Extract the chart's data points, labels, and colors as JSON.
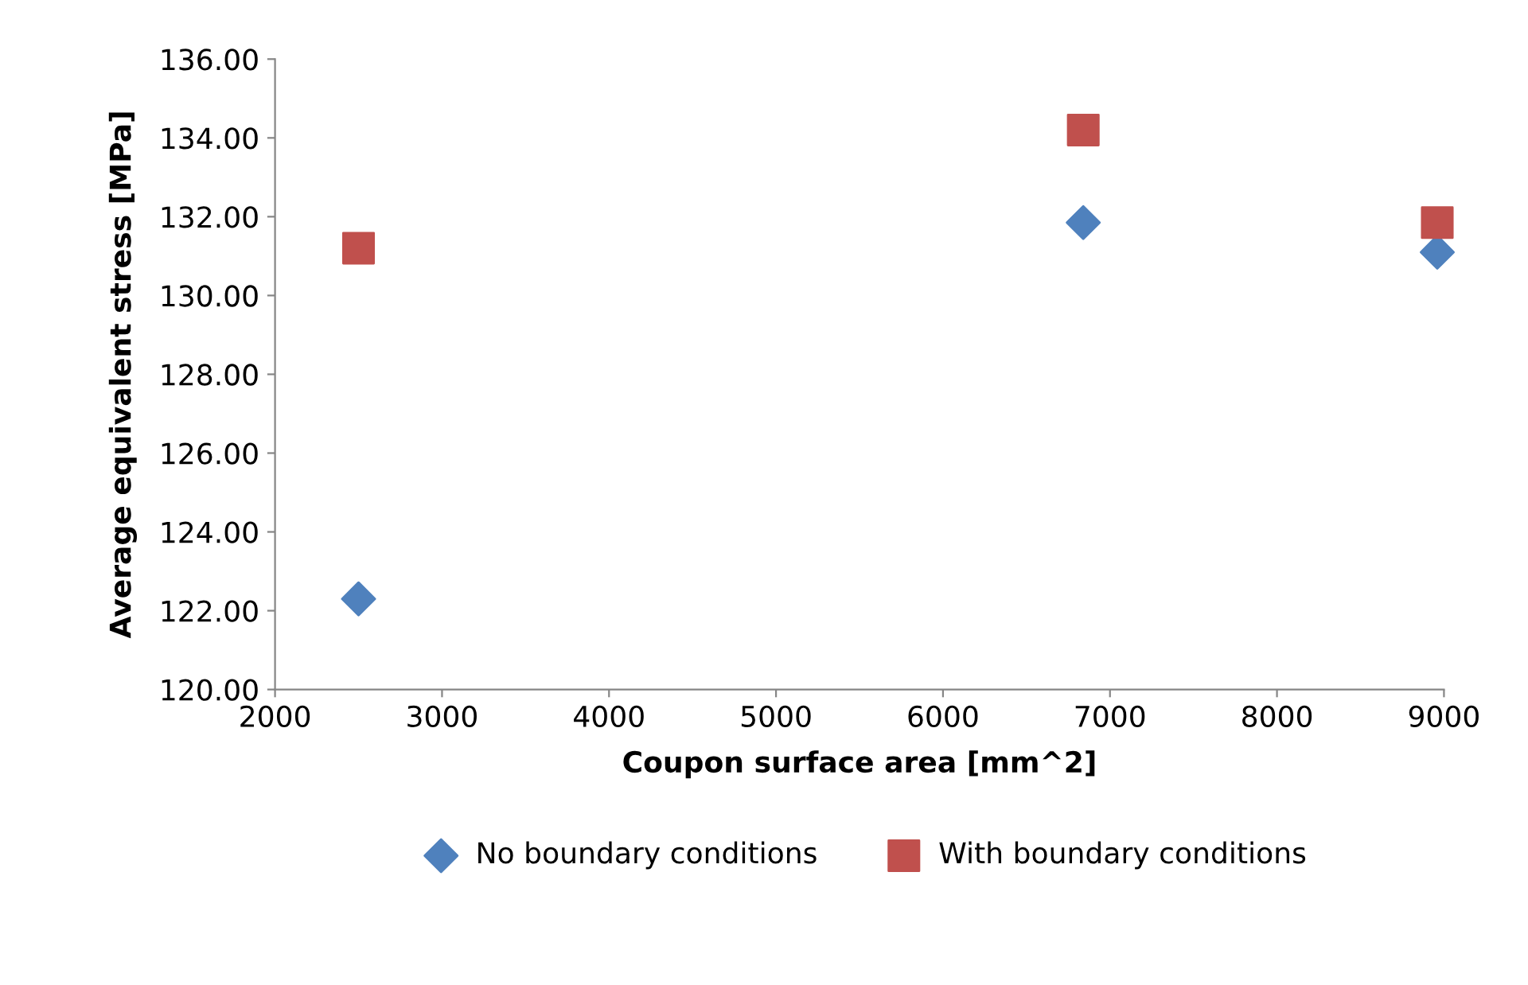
{
  "chart_data": {
    "type": "scatter",
    "xlabel": "Coupon surface area [mm^2]",
    "ylabel": "Average equivalent stress [MPa]",
    "xlim": [
      2000,
      9000
    ],
    "xticks": [
      2000,
      3000,
      4000,
      5000,
      6000,
      7000,
      8000,
      9000
    ],
    "ylim": [
      120,
      136
    ],
    "yticks": [
      {
        "value": 120,
        "label": "120.00"
      },
      {
        "value": 122,
        "label": "122.00"
      },
      {
        "value": 124,
        "label": "124.00"
      },
      {
        "value": 126,
        "label": "126.00"
      },
      {
        "value": 128,
        "label": "128.00"
      },
      {
        "value": 130,
        "label": "130.00"
      },
      {
        "value": 132,
        "label": "132.00"
      },
      {
        "value": 134,
        "label": "134.00"
      },
      {
        "value": 136,
        "label": "136.00"
      }
    ],
    "grid": false,
    "legend": "bottom",
    "series": [
      {
        "name": "No boundary conditions",
        "color": "#4f81bd",
        "marker": "diamond",
        "x": [
          2500,
          6840,
          8960
        ],
        "values": [
          122.3,
          131.85,
          131.1
        ]
      },
      {
        "name": "With boundary conditions",
        "color": "#c0504d",
        "marker": "square",
        "x": [
          2500,
          6840,
          8960
        ],
        "values": [
          131.2,
          134.2,
          131.85
        ]
      }
    ]
  }
}
